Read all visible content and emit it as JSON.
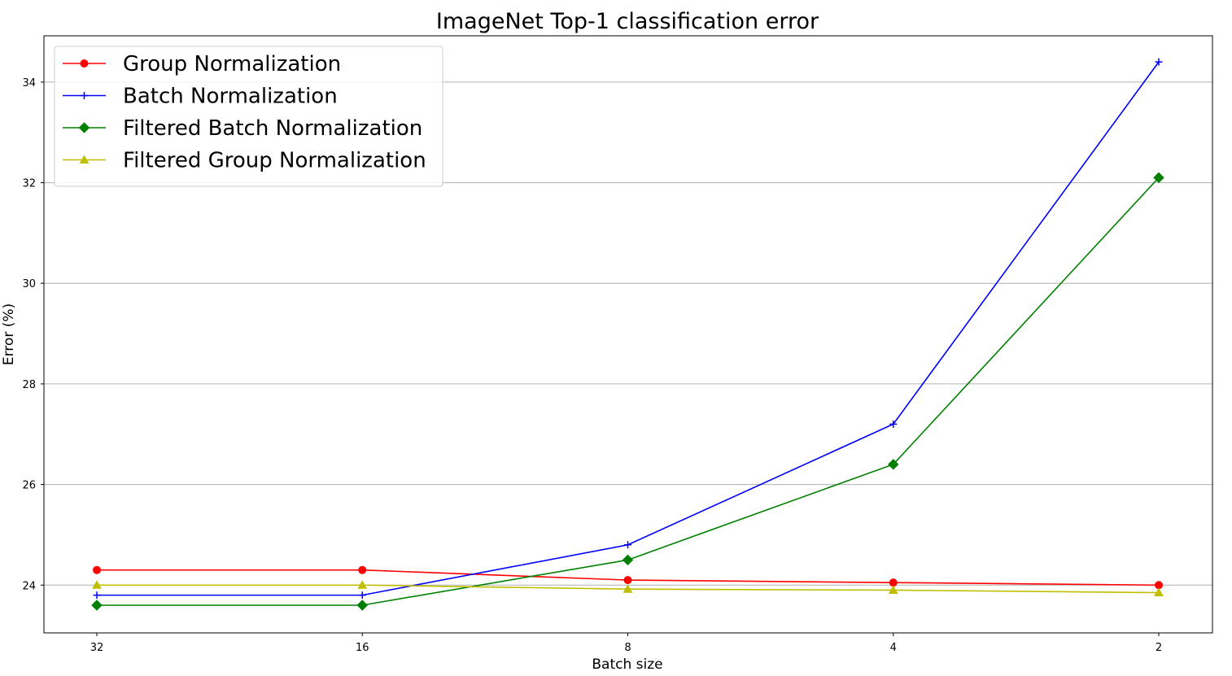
{
  "chart_data": {
    "type": "line",
    "title": "ImageNet Top-1 classification error",
    "xlabel": "Batch size",
    "ylabel": "Error (%)",
    "categories": [
      "32",
      "16",
      "8",
      "4",
      "2"
    ],
    "yticks": [
      24,
      26,
      28,
      30,
      32,
      34
    ],
    "ylim": [
      23.05,
      34.92
    ],
    "grid": "horizontal",
    "legend_position": "top-left",
    "series": [
      {
        "name": "Group Normalization",
        "color": "#ff0000",
        "marker": "circle",
        "values": [
          24.3,
          24.3,
          24.1,
          24.05,
          24.0
        ]
      },
      {
        "name": "Batch Normalization",
        "color": "#0000ff",
        "marker": "plus",
        "values": [
          23.8,
          23.8,
          24.8,
          27.2,
          34.4
        ]
      },
      {
        "name": "Filtered Batch Normalization",
        "color": "#008000",
        "marker": "diamond",
        "values": [
          23.6,
          23.6,
          24.5,
          26.4,
          32.1
        ]
      },
      {
        "name": "Filtered Group Normalization",
        "color": "#bfbf00",
        "marker": "triangle",
        "values": [
          24.0,
          24.0,
          23.92,
          23.9,
          23.85
        ]
      }
    ]
  }
}
